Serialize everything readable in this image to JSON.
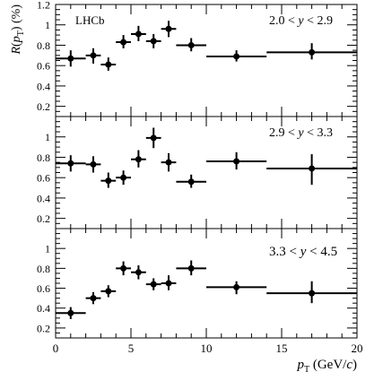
{
  "chart_data": [
    {
      "type": "scatter",
      "panel_label": "2.0 < y < 2.9",
      "experiment_label": "LHCb",
      "ylabel": "R(p_T) (%)",
      "ylim": [
        0.1,
        1.2
      ],
      "yticks": [
        0.2,
        0.4,
        0.6,
        0.8,
        1.0,
        1.2
      ],
      "ytick_labels": [
        "0.2",
        "0.4",
        "0.6",
        "0.8",
        "1",
        "1.2"
      ],
      "points": [
        {
          "x": 1.0,
          "xlo": 0,
          "xhi": 2,
          "y": 0.67,
          "ylo": 0.59,
          "yhi": 0.75
        },
        {
          "x": 2.5,
          "xlo": 2,
          "xhi": 3,
          "y": 0.7,
          "ylo": 0.62,
          "yhi": 0.77
        },
        {
          "x": 3.5,
          "xlo": 3,
          "xhi": 4,
          "y": 0.61,
          "ylo": 0.55,
          "yhi": 0.68
        },
        {
          "x": 4.5,
          "xlo": 4,
          "xhi": 5,
          "y": 0.83,
          "ylo": 0.77,
          "yhi": 0.9
        },
        {
          "x": 5.5,
          "xlo": 5,
          "xhi": 6,
          "y": 0.91,
          "ylo": 0.84,
          "yhi": 0.99
        },
        {
          "x": 6.5,
          "xlo": 6,
          "xhi": 7,
          "y": 0.84,
          "ylo": 0.77,
          "yhi": 0.91
        },
        {
          "x": 7.5,
          "xlo": 7,
          "xhi": 8,
          "y": 0.96,
          "ylo": 0.88,
          "yhi": 1.04
        },
        {
          "x": 9.0,
          "xlo": 8,
          "xhi": 10,
          "y": 0.8,
          "ylo": 0.74,
          "yhi": 0.87
        },
        {
          "x": 12.0,
          "xlo": 10,
          "xhi": 14,
          "y": 0.69,
          "ylo": 0.64,
          "yhi": 0.75
        },
        {
          "x": 17.0,
          "xlo": 14,
          "xhi": 20,
          "y": 0.73,
          "ylo": 0.66,
          "yhi": 0.82
        }
      ]
    },
    {
      "type": "scatter",
      "panel_label": "2.9 < y < 3.3",
      "ylim": [
        0.1,
        1.2
      ],
      "yticks": [
        0.2,
        0.4,
        0.6,
        0.8,
        1.0
      ],
      "ytick_labels": [
        "0.2",
        "0.4",
        "0.6",
        "0.8",
        "1"
      ],
      "points": [
        {
          "x": 1.0,
          "xlo": 0,
          "xhi": 2,
          "y": 0.74,
          "ylo": 0.66,
          "yhi": 0.82
        },
        {
          "x": 2.5,
          "xlo": 2,
          "xhi": 3,
          "y": 0.73,
          "ylo": 0.65,
          "yhi": 0.81
        },
        {
          "x": 3.5,
          "xlo": 3,
          "xhi": 4,
          "y": 0.57,
          "ylo": 0.5,
          "yhi": 0.65
        },
        {
          "x": 4.5,
          "xlo": 4,
          "xhi": 5,
          "y": 0.6,
          "ylo": 0.53,
          "yhi": 0.67
        },
        {
          "x": 5.5,
          "xlo": 5,
          "xhi": 6,
          "y": 0.78,
          "ylo": 0.7,
          "yhi": 0.87
        },
        {
          "x": 6.5,
          "xlo": 6,
          "xhi": 7,
          "y": 0.99,
          "ylo": 0.89,
          "yhi": 1.09
        },
        {
          "x": 7.5,
          "xlo": 7,
          "xhi": 8,
          "y": 0.75,
          "ylo": 0.66,
          "yhi": 0.84
        },
        {
          "x": 9.0,
          "xlo": 8,
          "xhi": 10,
          "y": 0.56,
          "ylo": 0.5,
          "yhi": 0.63
        },
        {
          "x": 12.0,
          "xlo": 10,
          "xhi": 14,
          "y": 0.76,
          "ylo": 0.68,
          "yhi": 0.85
        },
        {
          "x": 17.0,
          "xlo": 14,
          "xhi": 20,
          "y": 0.69,
          "ylo": 0.53,
          "yhi": 0.83
        }
      ]
    },
    {
      "type": "scatter",
      "panel_label": "3.3 < y < 4.5",
      "xlabel": "p_T (GeV/c)",
      "xlim": [
        0,
        20
      ],
      "xticks": [
        0,
        5,
        10,
        15,
        20
      ],
      "xtick_labels": [
        "0",
        "5",
        "10",
        "15",
        "20"
      ],
      "ylim": [
        0.1,
        1.2
      ],
      "yticks": [
        0.2,
        0.4,
        0.6,
        0.8,
        1.0
      ],
      "ytick_labels": [
        "0.2",
        "0.4",
        "0.6",
        "0.8",
        "1"
      ],
      "points": [
        {
          "x": 1.0,
          "xlo": 0,
          "xhi": 2,
          "y": 0.35,
          "ylo": 0.29,
          "yhi": 0.41
        },
        {
          "x": 2.5,
          "xlo": 2,
          "xhi": 3,
          "y": 0.5,
          "ylo": 0.44,
          "yhi": 0.56
        },
        {
          "x": 3.5,
          "xlo": 3,
          "xhi": 4,
          "y": 0.57,
          "ylo": 0.51,
          "yhi": 0.63
        },
        {
          "x": 4.5,
          "xlo": 4,
          "xhi": 5,
          "y": 0.8,
          "ylo": 0.73,
          "yhi": 0.87
        },
        {
          "x": 5.5,
          "xlo": 5,
          "xhi": 6,
          "y": 0.76,
          "ylo": 0.69,
          "yhi": 0.83
        },
        {
          "x": 6.5,
          "xlo": 6,
          "xhi": 7,
          "y": 0.64,
          "ylo": 0.58,
          "yhi": 0.7
        },
        {
          "x": 7.5,
          "xlo": 7,
          "xhi": 8,
          "y": 0.65,
          "ylo": 0.58,
          "yhi": 0.73
        },
        {
          "x": 9.0,
          "xlo": 8,
          "xhi": 10,
          "y": 0.8,
          "ylo": 0.73,
          "yhi": 0.88
        },
        {
          "x": 12.0,
          "xlo": 10,
          "xhi": 14,
          "y": 0.61,
          "ylo": 0.54,
          "yhi": 0.67
        },
        {
          "x": 17.0,
          "xlo": 14,
          "xhi": 20,
          "y": 0.55,
          "ylo": 0.45,
          "yhi": 0.67
        }
      ]
    }
  ],
  "colors": {
    "marker": "#000000",
    "frame": "#000000",
    "background": "#ffffff"
  }
}
